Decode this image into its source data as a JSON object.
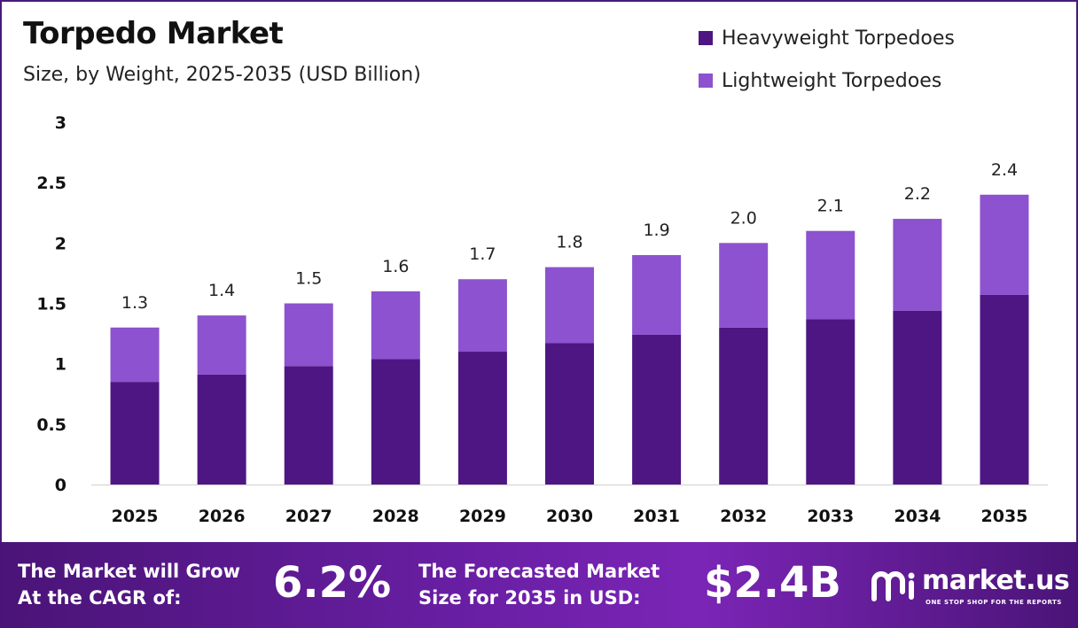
{
  "chart_data": {
    "type": "bar",
    "stacked": true,
    "title": "Torpedo Market",
    "subtitle": "Size, by Weight, 2025-2035 (USD Billion)",
    "categories": [
      "2025",
      "2026",
      "2027",
      "2028",
      "2029",
      "2030",
      "2031",
      "2032",
      "2033",
      "2034",
      "2035"
    ],
    "series": [
      {
        "name": "Heavyweight Torpedoes",
        "color": "#4e1683",
        "values": [
          0.85,
          0.91,
          0.98,
          1.04,
          1.1,
          1.17,
          1.24,
          1.3,
          1.37,
          1.44,
          1.57
        ]
      },
      {
        "name": "Lightweight Torpedoes",
        "color": "#8c52cf",
        "values": [
          0.45,
          0.49,
          0.52,
          0.56,
          0.6,
          0.63,
          0.66,
          0.7,
          0.73,
          0.76,
          0.83
        ]
      }
    ],
    "totals": [
      "1.3",
      "1.4",
      "1.5",
      "1.6",
      "1.7",
      "1.8",
      "1.9",
      "2.0",
      "2.1",
      "2.2",
      "2.4"
    ],
    "yticks": [
      "0",
      "0.5",
      "1",
      "1.5",
      "2",
      "2.5",
      "3"
    ],
    "ylim": [
      0,
      3
    ],
    "grid": false,
    "legend_position": "top-right"
  },
  "footer": {
    "cagr_line1": "The Market will Grow",
    "cagr_line2": "At the CAGR of:",
    "cagr_value": "6.2%",
    "forecast_line1": "The Forecasted Market",
    "forecast_line2": "Size for 2035 in USD:",
    "forecast_value": "$2.4B",
    "brand_name": "market.us",
    "brand_tagline": "ONE STOP SHOP FOR THE REPORTS"
  },
  "colors": {
    "border": "#4a1a7a",
    "footer_gradient": [
      "#4a1477",
      "#7b25b6"
    ]
  }
}
